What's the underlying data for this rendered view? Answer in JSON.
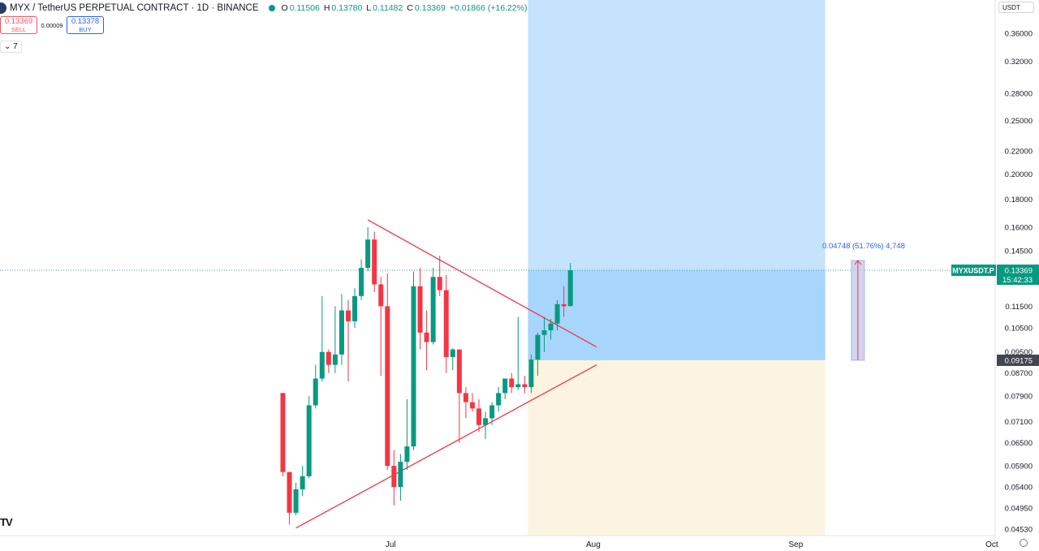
{
  "header": {
    "symbol_title": "MYX / TetherUS PERPETUAL CONTRACT · 1D · BINANCE",
    "ohlc": {
      "o_label": "O",
      "o_value": "0.11506",
      "h_label": "H",
      "h_value": "0.13780",
      "l_label": "L",
      "l_value": "0.11482",
      "c_label": "C",
      "c_value": "0.13369",
      "change": "+0.01866 (+16.22%)"
    }
  },
  "trade": {
    "sell_price": "0.13369",
    "sell_label": "SELL",
    "spread": "0.00009",
    "buy_price": "0.13378",
    "buy_label": "BUY"
  },
  "indicator_toggle": "⌄ 7",
  "currency": "USDT",
  "colors": {
    "up": "#089981",
    "down": "#f23645",
    "trendline": "#f23645",
    "target_zone": "#bbdefb",
    "stop_zone": "#fdf3e1",
    "accent": "#2962ff"
  },
  "chart_data": {
    "type": "candlestick",
    "price_scale": "log",
    "y_ticks": [
      "0.36000",
      "0.32000",
      "0.28000",
      "0.25000",
      "0.22000",
      "0.20000",
      "0.18000",
      "0.16000",
      "0.14500",
      "0.11500",
      "0.10500",
      "0.09500",
      "0.08700",
      "0.07900",
      "0.07100",
      "0.06500",
      "0.05900",
      "0.05400",
      "0.04950",
      "0.04530"
    ],
    "x_ticks": [
      {
        "label": "Jul",
        "index": 16.5
      },
      {
        "label": "Aug",
        "index": 47.5
      },
      {
        "label": "Sep",
        "index": 78.5
      },
      {
        "label": "Oct",
        "index": 108.5
      }
    ],
    "candles": [
      [
        0.08,
        0.08,
        0.0565,
        0.0575
      ],
      [
        0.0575,
        0.0575,
        0.0462,
        0.0485
      ],
      [
        0.0485,
        0.055,
        0.048,
        0.0535
      ],
      [
        0.0535,
        0.059,
        0.052,
        0.0565
      ],
      [
        0.0565,
        0.079,
        0.056,
        0.076
      ],
      [
        0.076,
        0.09,
        0.075,
        0.085
      ],
      [
        0.085,
        0.12,
        0.084,
        0.095
      ],
      [
        0.095,
        0.096,
        0.087,
        0.09
      ],
      [
        0.09,
        0.115,
        0.087,
        0.094
      ],
      [
        0.094,
        0.121,
        0.09,
        0.113
      ],
      [
        0.113,
        0.118,
        0.084,
        0.108
      ],
      [
        0.108,
        0.124,
        0.105,
        0.12
      ],
      [
        0.12,
        0.14,
        0.118,
        0.135
      ],
      [
        0.135,
        0.16,
        0.133,
        0.152
      ],
      [
        0.152,
        0.157,
        0.122,
        0.126
      ],
      [
        0.126,
        0.13,
        0.086,
        0.115
      ],
      [
        0.115,
        0.132,
        0.058,
        0.059
      ],
      [
        0.059,
        0.063,
        0.05,
        0.054
      ],
      [
        0.054,
        0.062,
        0.051,
        0.06
      ],
      [
        0.06,
        0.078,
        0.058,
        0.064
      ],
      [
        0.064,
        0.133,
        0.063,
        0.125
      ],
      [
        0.125,
        0.135,
        0.096,
        0.103
      ],
      [
        0.103,
        0.113,
        0.088,
        0.099
      ],
      [
        0.099,
        0.135,
        0.098,
        0.13
      ],
      [
        0.13,
        0.142,
        0.12,
        0.123
      ],
      [
        0.123,
        0.131,
        0.087,
        0.093
      ],
      [
        0.093,
        0.0965,
        0.088,
        0.096
      ],
      [
        0.096,
        0.096,
        0.065,
        0.08
      ],
      [
        0.08,
        0.082,
        0.072,
        0.077
      ],
      [
        0.077,
        0.08,
        0.074,
        0.075
      ],
      [
        0.075,
        0.078,
        0.068,
        0.07
      ],
      [
        0.07,
        0.074,
        0.066,
        0.072
      ],
      [
        0.072,
        0.077,
        0.07,
        0.076
      ],
      [
        0.076,
        0.082,
        0.074,
        0.08
      ],
      [
        0.08,
        0.085,
        0.078,
        0.085
      ],
      [
        0.085,
        0.087,
        0.08,
        0.082
      ],
      [
        0.082,
        0.11,
        0.081,
        0.083
      ],
      [
        0.083,
        0.086,
        0.08,
        0.082
      ],
      [
        0.082,
        0.094,
        0.08,
        0.092
      ],
      [
        0.092,
        0.103,
        0.086,
        0.102
      ],
      [
        0.102,
        0.11,
        0.095,
        0.104
      ],
      [
        0.104,
        0.109,
        0.1,
        0.107
      ],
      [
        0.107,
        0.118,
        0.104,
        0.116
      ],
      [
        0.116,
        0.125,
        0.11,
        0.115
      ],
      [
        0.1151,
        0.1378,
        0.1148,
        0.1337
      ]
    ],
    "trendlines": [
      {
        "from": {
          "index": 13,
          "price": 0.165
        },
        "to": {
          "index": 48,
          "price": 0.097
        }
      },
      {
        "from": {
          "index": 2,
          "price": 0.0455
        },
        "to": {
          "index": 48,
          "price": 0.09
        }
      }
    ],
    "position": {
      "type": "long",
      "start_index": 38,
      "end_index": 83,
      "entry": 0.09175,
      "target": 0.42,
      "stop": 0.044
    },
    "measure": {
      "index": 88,
      "from": 0.09175,
      "to": 0.13923,
      "label": "0.04748 (51.76%) 4,748"
    },
    "last_price": {
      "symbol": "MYXUSDT.P",
      "value": 0.13369,
      "value_label": "0.13369",
      "countdown": "15:42:33"
    },
    "entry_label": "0.09175"
  }
}
